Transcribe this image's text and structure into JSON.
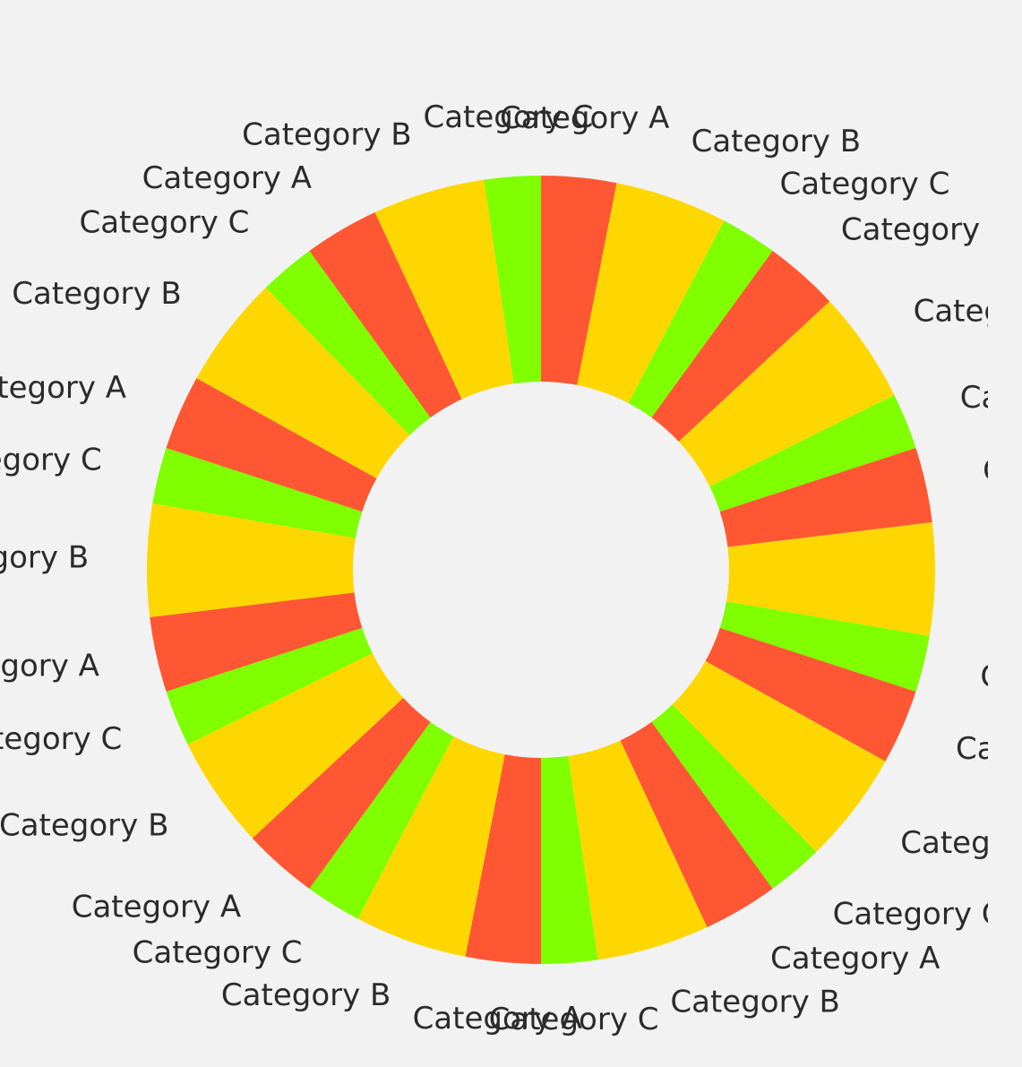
{
  "chart_data": {
    "type": "pie",
    "variant": "donut",
    "start_angle_deg": 0,
    "direction": "clockwise",
    "colors": {
      "Category A": "#ff5733",
      "Category B": "#ffd700",
      "Category C": "#7fff00"
    },
    "slices": [
      {
        "label": "Category A",
        "value": 4
      },
      {
        "label": "Category B",
        "value": 6
      },
      {
        "label": "Category C",
        "value": 3
      },
      {
        "label": "Category A",
        "value": 4
      },
      {
        "label": "Category B",
        "value": 6
      },
      {
        "label": "Category C",
        "value": 3
      },
      {
        "label": "Category A",
        "value": 4
      },
      {
        "label": "Category B",
        "value": 6
      },
      {
        "label": "Category C",
        "value": 3
      },
      {
        "label": "Category A",
        "value": 4
      },
      {
        "label": "Category B",
        "value": 6
      },
      {
        "label": "Category C",
        "value": 3
      },
      {
        "label": "Category A",
        "value": 4
      },
      {
        "label": "Category B",
        "value": 6
      },
      {
        "label": "Category C",
        "value": 3
      },
      {
        "label": "Category A",
        "value": 4
      },
      {
        "label": "Category B",
        "value": 6
      },
      {
        "label": "Category C",
        "value": 3
      },
      {
        "label": "Category A",
        "value": 4
      },
      {
        "label": "Category B",
        "value": 6
      },
      {
        "label": "Category C",
        "value": 3
      },
      {
        "label": "Category A",
        "value": 4
      },
      {
        "label": "Category B",
        "value": 6
      },
      {
        "label": "Category C",
        "value": 3
      },
      {
        "label": "Category A",
        "value": 4
      },
      {
        "label": "Category B",
        "value": 6
      },
      {
        "label": "Category C",
        "value": 3
      },
      {
        "label": "Category A",
        "value": 4
      },
      {
        "label": "Category B",
        "value": 6
      },
      {
        "label": "Category C",
        "value": 3
      }
    ],
    "title": "",
    "legend": "none"
  }
}
